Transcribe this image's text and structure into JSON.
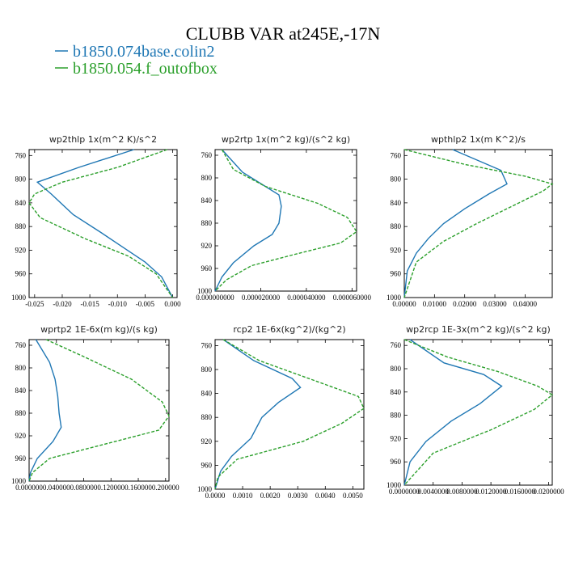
{
  "figure": {
    "title": "CLUBB VAR at245E,-17N",
    "legend": [
      {
        "label": "b1850.074base.colin2",
        "color": "#1f77b4",
        "style": "solid"
      },
      {
        "label": "b1850.054.f_outofbox",
        "color": "#2ca02c",
        "style": "dashed"
      }
    ]
  },
  "chart_data": [
    {
      "type": "line",
      "title": "wp2thlp   1x(m^2 K)/s^2",
      "xlim": [
        -0.026,
        0.0008
      ],
      "ylim": [
        1000,
        750
      ],
      "xticks": [
        -0.025,
        -0.02,
        -0.015,
        -0.01,
        -0.005,
        0.0
      ],
      "xtick_labels": [
        "-0.025",
        "-0.020",
        "-0.015",
        "-0.010",
        "-0.005",
        "0.000"
      ],
      "yticks": [
        760,
        800,
        840,
        880,
        920,
        960,
        1000
      ],
      "ytick_labels": [
        "760",
        "800",
        "840",
        "880",
        "920",
        "960",
        "1000"
      ],
      "series": [
        {
          "name": "b1850.074base.colin2",
          "color": "#1f77b4",
          "style": "solid",
          "x": [
            -0.007,
            -0.017,
            -0.0245,
            -0.022,
            -0.018,
            -0.013,
            -0.009,
            -0.005,
            -0.002,
            0.0
          ],
          "y": [
            750,
            780,
            805,
            825,
            860,
            890,
            915,
            940,
            965,
            1000
          ]
        },
        {
          "name": "b1850.054.f_outofbox",
          "color": "#2ca02c",
          "style": "dashed",
          "x": [
            -0.001,
            -0.01,
            -0.02,
            -0.025,
            -0.026,
            -0.024,
            -0.016,
            -0.008,
            -0.003,
            0.0
          ],
          "y": [
            750,
            780,
            805,
            825,
            840,
            865,
            900,
            930,
            960,
            1000
          ]
        }
      ]
    },
    {
      "type": "line",
      "title": "wp2rtp   1x(m^2 kg)/(s^2 kg)",
      "xlim": [
        0.0,
        6.2e-05
      ],
      "ylim": [
        1000,
        750
      ],
      "xticks": [
        0.0,
        2e-05,
        4e-05,
        6e-05
      ],
      "xtick_labels": [
        "0.000000000",
        "0.000020000",
        "0.000040000",
        "0.000060000"
      ],
      "yticks": [
        760,
        800,
        840,
        880,
        920,
        960,
        1000
      ],
      "ytick_labels": [
        "760",
        "800",
        "840",
        "880",
        "920",
        "960",
        "1000"
      ],
      "series": [
        {
          "name": "b1850.074base.colin2",
          "color": "#1f77b4",
          "style": "solid",
          "x": [
            3e-06,
            1.2e-05,
            2.2e-05,
            2.8e-05,
            2.9e-05,
            2.8e-05,
            2.5e-05,
            1.7e-05,
            8e-06,
            3e-06,
            0.0
          ],
          "y": [
            750,
            790,
            815,
            830,
            850,
            880,
            900,
            920,
            950,
            975,
            1000
          ]
        },
        {
          "name": "b1850.054.f_outofbox",
          "color": "#2ca02c",
          "style": "dashed",
          "x": [
            3e-06,
            8e-06,
            2.2e-05,
            4.5e-05,
            5.8e-05,
            6.2e-05,
            5.5e-05,
            3.5e-05,
            1.6e-05,
            5e-06,
            0.0
          ],
          "y": [
            750,
            785,
            815,
            845,
            870,
            895,
            915,
            935,
            955,
            980,
            1000
          ]
        }
      ]
    },
    {
      "type": "line",
      "title": "wpthlp2   1x(m K^2)/s",
      "xlim": [
        0.0,
        0.049
      ],
      "ylim": [
        1000,
        750
      ],
      "xticks": [
        0.0,
        0.01,
        0.02,
        0.03,
        0.04
      ],
      "xtick_labels": [
        "0.00000",
        "0.01000",
        "0.02000",
        "0.03000",
        "0.04000"
      ],
      "yticks": [
        760,
        800,
        840,
        880,
        920,
        960,
        1000
      ],
      "ytick_labels": [
        "760",
        "800",
        "840",
        "880",
        "920",
        "960",
        "1000"
      ],
      "series": [
        {
          "name": "b1850.074base.colin2",
          "color": "#1f77b4",
          "style": "solid",
          "x": [
            0.016,
            0.032,
            0.034,
            0.028,
            0.02,
            0.013,
            0.008,
            0.004,
            0.001,
            0.0
          ],
          "y": [
            750,
            785,
            808,
            825,
            850,
            875,
            900,
            925,
            955,
            1000
          ]
        },
        {
          "name": "b1850.054.f_outofbox",
          "color": "#2ca02c",
          "style": "dashed",
          "x": [
            0.0,
            0.02,
            0.04,
            0.049,
            0.046,
            0.036,
            0.024,
            0.013,
            0.004,
            0.0
          ],
          "y": [
            750,
            775,
            795,
            808,
            820,
            845,
            875,
            905,
            940,
            1000
          ]
        }
      ]
    },
    {
      "type": "line",
      "title": "wprtp2   1E-6x(m kg)/(s kg)",
      "xlim": [
        0.0,
        0.205
      ],
      "ylim": [
        1000,
        750
      ],
      "xticks": [
        0.0,
        0.04,
        0.08,
        0.12,
        0.16,
        0.2
      ],
      "xtick_labels": [
        "0.000000",
        "0.040000",
        "0.080000",
        "0.120000",
        "0.160000",
        "0.200000"
      ],
      "yticks": [
        760,
        800,
        840,
        880,
        920,
        960,
        1000
      ],
      "ytick_labels": [
        "760",
        "800",
        "840",
        "880",
        "920",
        "960",
        "1000"
      ],
      "series": [
        {
          "name": "b1850.074base.colin2",
          "color": "#1f77b4",
          "style": "solid",
          "x": [
            0.01,
            0.03,
            0.038,
            0.042,
            0.044,
            0.047,
            0.035,
            0.012,
            0.002,
            0.0
          ],
          "y": [
            750,
            790,
            820,
            850,
            880,
            905,
            930,
            960,
            985,
            1000
          ]
        },
        {
          "name": "b1850.054.f_outofbox",
          "color": "#2ca02c",
          "style": "dashed",
          "x": [
            0.025,
            0.08,
            0.15,
            0.195,
            0.205,
            0.19,
            0.11,
            0.03,
            0.005,
            0.0
          ],
          "y": [
            750,
            780,
            820,
            860,
            885,
            910,
            935,
            960,
            985,
            1000
          ]
        }
      ]
    },
    {
      "type": "line",
      "title": "rcp2   1E-6x(kg^2)/(kg^2)",
      "xlim": [
        0.0,
        0.0054
      ],
      "ylim": [
        1000,
        750
      ],
      "xticks": [
        0.0,
        0.001,
        0.002,
        0.003,
        0.004,
        0.005
      ],
      "xtick_labels": [
        "0.0000",
        "0.0010",
        "0.0020",
        "0.0030",
        "0.0040",
        "0.0050"
      ],
      "yticks": [
        760,
        800,
        840,
        880,
        920,
        960,
        1000
      ],
      "ytick_labels": [
        "760",
        "800",
        "840",
        "880",
        "920",
        "960",
        "1000"
      ],
      "series": [
        {
          "name": "b1850.074base.colin2",
          "color": "#1f77b4",
          "style": "solid",
          "x": [
            0.0003,
            0.0014,
            0.0028,
            0.0031,
            0.0023,
            0.0017,
            0.0013,
            0.0006,
            0.0002,
            0.0
          ],
          "y": [
            750,
            785,
            815,
            830,
            855,
            880,
            915,
            945,
            970,
            1000
          ]
        },
        {
          "name": "b1850.054.f_outofbox",
          "color": "#2ca02c",
          "style": "dashed",
          "x": [
            0.0003,
            0.0016,
            0.0037,
            0.0052,
            0.0054,
            0.0046,
            0.0032,
            0.0008,
            0.0001,
            0.0
          ],
          "y": [
            750,
            785,
            820,
            845,
            865,
            890,
            920,
            950,
            980,
            1000
          ]
        }
      ]
    },
    {
      "type": "line",
      "title": "wp2rcp   1E-3x(m^2 kg)/(s^2 kg)",
      "xlim": [
        0.0,
        0.0205
      ],
      "ylim": [
        1000,
        750
      ],
      "xticks": [
        0.0,
        0.004,
        0.008,
        0.012,
        0.016,
        0.02
      ],
      "xtick_labels": [
        "0.0000000",
        "0.0040000",
        "0.0080000",
        "0.0120000",
        "0.0160000",
        "0.0200000"
      ],
      "yticks": [
        760,
        800,
        840,
        880,
        920,
        960,
        1000
      ],
      "ytick_labels": [
        "760",
        "800",
        "840",
        "880",
        "920",
        "960",
        "1000"
      ],
      "series": [
        {
          "name": "b1850.074base.colin2",
          "color": "#1f77b4",
          "style": "solid",
          "x": [
            0.0008,
            0.0055,
            0.011,
            0.0135,
            0.0105,
            0.0065,
            0.003,
            0.0008,
            0.0
          ],
          "y": [
            750,
            790,
            810,
            830,
            860,
            890,
            925,
            960,
            1000
          ]
        },
        {
          "name": "b1850.054.f_outofbox",
          "color": "#2ca02c",
          "style": "dashed",
          "x": [
            0.0,
            0.006,
            0.013,
            0.0185,
            0.0205,
            0.018,
            0.012,
            0.004,
            0.0
          ],
          "y": [
            750,
            780,
            805,
            830,
            845,
            870,
            905,
            945,
            1000
          ]
        }
      ]
    }
  ]
}
